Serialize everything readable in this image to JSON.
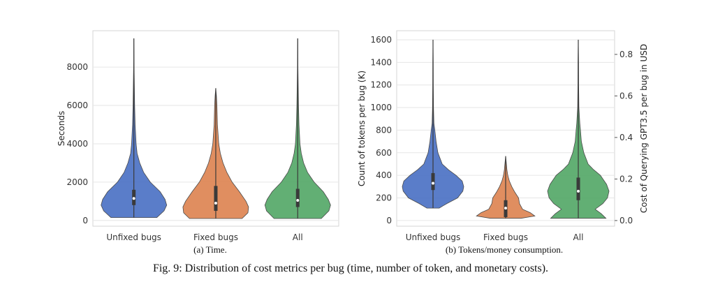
{
  "figure_caption": "Fig. 9: Distribution of cost metrics per bug (time, number of token, and monetary costs).",
  "chart_data": [
    {
      "type": "violin",
      "subcaption": "(a) Time.",
      "ylabel": "Seconds",
      "categories": [
        "Unfixed bugs",
        "Fixed bugs",
        "All"
      ],
      "ylim": [
        -300,
        9900
      ],
      "yticks": [
        0,
        2000,
        4000,
        6000,
        8000
      ],
      "grid": true,
      "series": [
        {
          "category": "Unfixed bugs",
          "color": "#4c72c4",
          "min": 150,
          "q1": 800,
          "median": 1150,
          "q3": 1600,
          "max": 9500,
          "profile": [
            [
              150,
              0.7
            ],
            [
              500,
              0.92
            ],
            [
              800,
              1.0
            ],
            [
              1100,
              0.95
            ],
            [
              1500,
              0.8
            ],
            [
              2000,
              0.5
            ],
            [
              2500,
              0.3
            ],
            [
              3000,
              0.18
            ],
            [
              3500,
              0.1
            ],
            [
              4000,
              0.07
            ],
            [
              5000,
              0.04
            ],
            [
              6000,
              0.025
            ],
            [
              7000,
              0.015
            ],
            [
              8000,
              0.008
            ],
            [
              9500,
              0.0
            ]
          ]
        },
        {
          "category": "Fixed bugs",
          "color": "#dd8452",
          "min": 100,
          "q1": 500,
          "median": 900,
          "q3": 1800,
          "max": 6900,
          "profile": [
            [
              100,
              0.8
            ],
            [
              400,
              0.98
            ],
            [
              700,
              1.0
            ],
            [
              1000,
              0.92
            ],
            [
              1500,
              0.72
            ],
            [
              2000,
              0.5
            ],
            [
              2500,
              0.34
            ],
            [
              3000,
              0.22
            ],
            [
              3500,
              0.14
            ],
            [
              4000,
              0.09
            ],
            [
              5000,
              0.05
            ],
            [
              6000,
              0.035
            ],
            [
              6500,
              0.02
            ],
            [
              6900,
              0.0
            ]
          ]
        },
        {
          "category": "All",
          "color": "#55a868",
          "min": 100,
          "q1": 700,
          "median": 1050,
          "q3": 1650,
          "max": 9500,
          "profile": [
            [
              100,
              0.72
            ],
            [
              500,
              0.95
            ],
            [
              800,
              1.0
            ],
            [
              1100,
              0.93
            ],
            [
              1500,
              0.78
            ],
            [
              2000,
              0.5
            ],
            [
              2500,
              0.3
            ],
            [
              3000,
              0.18
            ],
            [
              3500,
              0.11
            ],
            [
              4000,
              0.07
            ],
            [
              5000,
              0.04
            ],
            [
              6000,
              0.025
            ],
            [
              7000,
              0.015
            ],
            [
              8000,
              0.008
            ],
            [
              9500,
              0.0
            ]
          ]
        }
      ]
    },
    {
      "type": "violin",
      "subcaption": "(b) Tokens/money consumption.",
      "ylabel": "Count of tokens per bug (K)",
      "ylabel_right": "Cost of Querying GPT3.5 per bug in USD",
      "categories": [
        "Unfixed bugs",
        "Fixed bugs",
        "All"
      ],
      "ylim": [
        -50,
        1680
      ],
      "yticks": [
        0,
        200,
        400,
        600,
        800,
        1000,
        1200,
        1400,
        1600
      ],
      "ylim_right": [
        -0.0272,
        0.914
      ],
      "yticks_right": [
        0.0,
        0.2,
        0.4,
        0.6,
        0.8
      ],
      "grid": true,
      "series": [
        {
          "category": "Unfixed bugs",
          "color": "#4c72c4",
          "min": 110,
          "q1": 270,
          "median": 330,
          "q3": 420,
          "max": 1600,
          "profile": [
            [
              110,
              0.2
            ],
            [
              150,
              0.45
            ],
            [
              200,
              0.8
            ],
            [
              260,
              0.97
            ],
            [
              300,
              1.0
            ],
            [
              350,
              0.95
            ],
            [
              400,
              0.75
            ],
            [
              450,
              0.5
            ],
            [
              500,
              0.3
            ],
            [
              600,
              0.16
            ],
            [
              700,
              0.1
            ],
            [
              800,
              0.06
            ],
            [
              860,
              0.03
            ],
            [
              1000,
              0.015
            ],
            [
              1200,
              0.01
            ],
            [
              1400,
              0.006
            ],
            [
              1600,
              0.0
            ]
          ]
        },
        {
          "category": "Fixed bugs",
          "color": "#dd8452",
          "min": 20,
          "q1": 30,
          "median": 110,
          "q3": 180,
          "max": 570,
          "profile": [
            [
              20,
              0.5
            ],
            [
              40,
              0.95
            ],
            [
              70,
              0.8
            ],
            [
              100,
              0.55
            ],
            [
              150,
              0.45
            ],
            [
              200,
              0.42
            ],
            [
              250,
              0.3
            ],
            [
              300,
              0.2
            ],
            [
              350,
              0.12
            ],
            [
              400,
              0.07
            ],
            [
              450,
              0.04
            ],
            [
              500,
              0.025
            ],
            [
              570,
              0.0
            ]
          ]
        },
        {
          "category": "All",
          "color": "#55a868",
          "min": 20,
          "q1": 180,
          "median": 260,
          "q3": 380,
          "max": 1600,
          "profile": [
            [
              20,
              0.9
            ],
            [
              60,
              0.75
            ],
            [
              100,
              0.55
            ],
            [
              150,
              0.8
            ],
            [
              200,
              0.95
            ],
            [
              260,
              1.0
            ],
            [
              320,
              0.92
            ],
            [
              400,
              0.72
            ],
            [
              450,
              0.5
            ],
            [
              500,
              0.32
            ],
            [
              600,
              0.18
            ],
            [
              700,
              0.1
            ],
            [
              800,
              0.07
            ],
            [
              860,
              0.05
            ],
            [
              1000,
              0.02
            ],
            [
              1200,
              0.012
            ],
            [
              1400,
              0.008
            ],
            [
              1600,
              0.0
            ]
          ]
        }
      ]
    }
  ]
}
